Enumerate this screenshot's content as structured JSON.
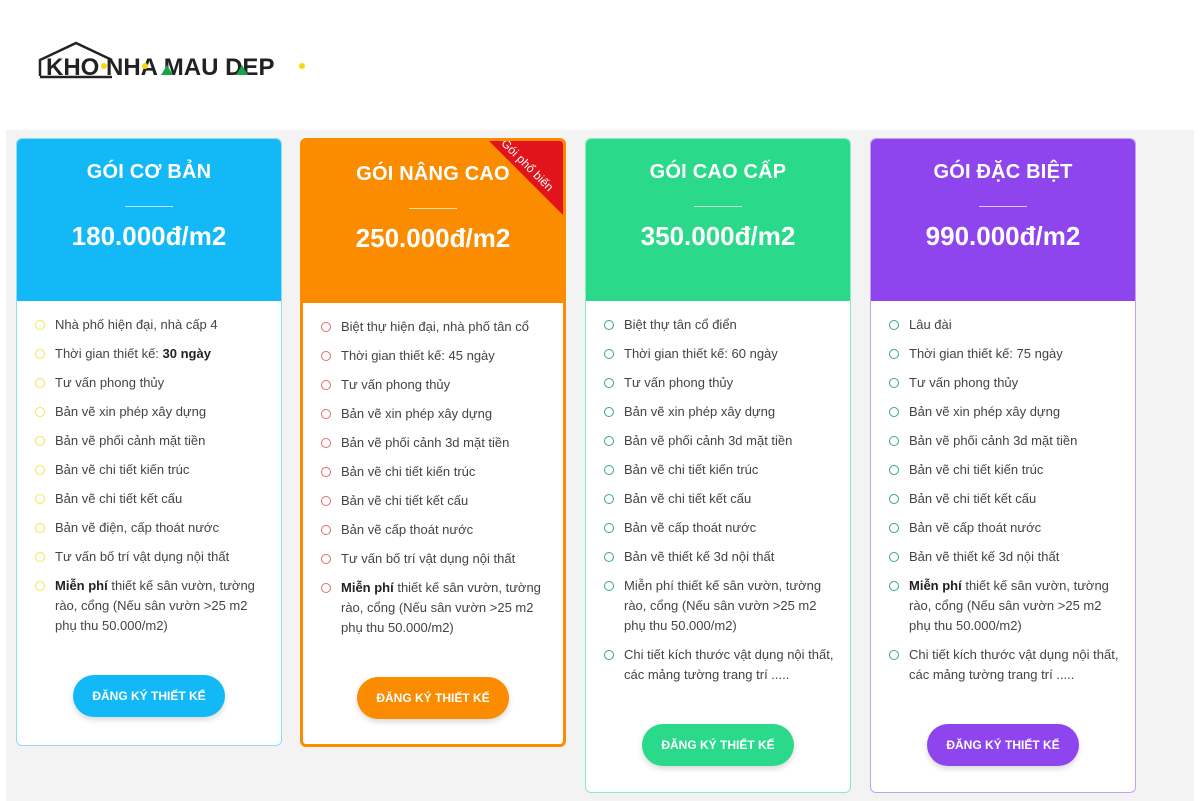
{
  "logo": {
    "text": "KHO NHA MAU DEP"
  },
  "colors": {
    "basic": "#12b9f6",
    "advanced": "#fb8c00",
    "premium": "#2bd98b",
    "special": "#8f45ed",
    "ribbon": "#e1131b"
  },
  "plans": [
    {
      "title": "GÓI CƠ BẢN",
      "price": "180.000đ/m2",
      "button": "ĐĂNG KÝ THIẾT KẾ",
      "items": [
        {
          "pre": "Nhà phố hiện đại, nhà cấp 4"
        },
        {
          "pre": "Thời gian thiết kế: ",
          "bold": "30 ngày"
        },
        {
          "pre": "Tư vấn phong thủy"
        },
        {
          "pre": "Bản vẽ xin phép xây dựng"
        },
        {
          "pre": "Bản vẽ phối cảnh  mặt tiền"
        },
        {
          "pre": "Bản vẽ chi tiết kiến trúc"
        },
        {
          "pre": "Bản vẽ chi tiết kết cấu"
        },
        {
          "pre": "Bản vẽ điện, cấp thoát nước"
        },
        {
          "pre": "Tư vấn bố trí vật dụng nội thất"
        },
        {
          "bold": "Miễn phí",
          "post": " thiết kế sân vườn, tường rào, cổng (Nếu sân vườn >25 m2 phụ thu 50.000/m2)"
        }
      ]
    },
    {
      "title": "GÓI NÂNG CAO",
      "price": "250.000đ/m2",
      "button": "ĐĂNG KÝ THIẾT KẾ",
      "ribbon": "Gói phổ biến",
      "items": [
        {
          "pre": "Biệt thự hiện đại, nhà phố tân cổ"
        },
        {
          "pre": "Thời gian thiết kế: 45 ngày"
        },
        {
          "pre": "Tư vấn phong thủy"
        },
        {
          "pre": "Bản vẽ xin phép xây dựng"
        },
        {
          "pre": "Bản vẽ phối cảnh 3d mặt tiền"
        },
        {
          "pre": "Bản vẽ chi tiết kiến trúc"
        },
        {
          "pre": "Bản vẽ chi tiết kết cấu"
        },
        {
          "pre": "Bản vẽ cấp thoát nước"
        },
        {
          "pre": "Tư vấn bố trí vật dụng nội thất"
        },
        {
          "bold": "Miễn phí",
          "post": " thiết kế sân vườn, tường rào, cổng (Nếu sân vườn >25 m2 phụ thu 50.000/m2)"
        }
      ]
    },
    {
      "title": "GÓI CAO CẤP",
      "price": "350.000đ/m2",
      "button": "ĐĂNG KÝ THIẾT KẾ",
      "items": [
        {
          "pre": "Biệt thự tân cổ điển"
        },
        {
          "pre": "Thời gian thiết kế: 60 ngày"
        },
        {
          "pre": "Tư vấn phong thủy"
        },
        {
          "pre": "Bản vẽ xin phép xây dựng"
        },
        {
          "pre": "Bản vẽ phối cảnh 3d mặt tiền"
        },
        {
          "pre": "Bản vẽ chi tiết kiến trúc"
        },
        {
          "pre": "Bản vẽ chi tiết kết cấu"
        },
        {
          "pre": "Bản vẽ cấp thoát nước"
        },
        {
          "pre": "Bản vẽ thiết kế 3d nội thất"
        },
        {
          "pre": "Miễn phí thiết kế sân vườn, tường rào, cổng (Nếu sân vườn >25 m2 phụ thu 50.000/m2)"
        },
        {
          "pre": "Chi tiết kích thước vật dụng nội thất, các mảng tường trang trí ....."
        }
      ]
    },
    {
      "title": "GÓI ĐẶC BIỆT",
      "price": "990.000đ/m2",
      "button": "ĐĂNG KÝ THIẾT KẾ",
      "items": [
        {
          "pre": "Lâu đài"
        },
        {
          "pre": "Thời gian thiết kế: 75 ngày"
        },
        {
          "pre": "Tư vấn phong thủy"
        },
        {
          "pre": "Bản vẽ xin phép xây dựng"
        },
        {
          "pre": "Bản vẽ phối cảnh 3d mặt tiền"
        },
        {
          "pre": "Bản vẽ chi tiết kiến trúc"
        },
        {
          "pre": "Bản vẽ chi tiết kết cấu"
        },
        {
          "pre": "Bản vẽ cấp thoát nước"
        },
        {
          "pre": "Bản vẽ thiết kế 3d nội thất"
        },
        {
          "bold": "Miễn phí",
          "post": " thiết kế sân vườn, tường rào, cổng (Nếu sân vườn >25 m2 phụ thu 50.000/m2)"
        },
        {
          "pre": "Chi tiết kích thước vật dụng nội thất, các mảng tường trang trí ....."
        }
      ]
    }
  ]
}
